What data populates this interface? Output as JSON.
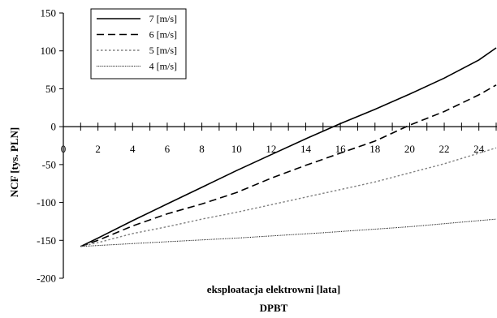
{
  "chart_data": {
    "type": "line",
    "title": "",
    "xlabel": "eksploatacja elektrowni [lata]",
    "xlabel2": "DPBT",
    "ylabel": "NCF [tys. PLN]",
    "xlim": [
      0,
      25
    ],
    "ylim": [
      -200,
      150
    ],
    "xticks": [
      0,
      2,
      4,
      6,
      8,
      10,
      12,
      14,
      16,
      18,
      20,
      22,
      24
    ],
    "yticks": [
      -200,
      -150,
      -100,
      -50,
      0,
      50,
      100,
      150
    ],
    "grid": false,
    "legend_position": "top-left",
    "series": [
      {
        "name": "7 [m/s]",
        "style": "solid",
        "color": "#000000",
        "points": [
          [
            1,
            -158
          ],
          [
            2,
            -147
          ],
          [
            4,
            -124
          ],
          [
            6,
            -102
          ],
          [
            8,
            -80
          ],
          [
            10,
            -58
          ],
          [
            12,
            -37
          ],
          [
            14,
            -16
          ],
          [
            16,
            4
          ],
          [
            18,
            23
          ],
          [
            20,
            43
          ],
          [
            22,
            64
          ],
          [
            24,
            88
          ],
          [
            25,
            104
          ]
        ]
      },
      {
        "name": "6 [m/s]",
        "style": "dashed",
        "color": "#000000",
        "points": [
          [
            1,
            -158
          ],
          [
            2,
            -150
          ],
          [
            4,
            -131
          ],
          [
            6,
            -115
          ],
          [
            8,
            -102
          ],
          [
            10,
            -87
          ],
          [
            12,
            -68
          ],
          [
            14,
            -51
          ],
          [
            16,
            -35
          ],
          [
            18,
            -19
          ],
          [
            20,
            2
          ],
          [
            22,
            20
          ],
          [
            24,
            42
          ],
          [
            25,
            55
          ]
        ]
      },
      {
        "name": "5 [m/s]",
        "style": "dotted",
        "color": "#808080",
        "points": [
          [
            1,
            -158
          ],
          [
            2,
            -153
          ],
          [
            4,
            -141
          ],
          [
            6,
            -132
          ],
          [
            8,
            -122
          ],
          [
            10,
            -113
          ],
          [
            12,
            -103
          ],
          [
            14,
            -93
          ],
          [
            16,
            -83
          ],
          [
            18,
            -73
          ],
          [
            20,
            -61
          ],
          [
            22,
            -49
          ],
          [
            24,
            -35
          ],
          [
            25,
            -28
          ]
        ]
      },
      {
        "name": "4 [m/s]",
        "style": "fine-dotted",
        "color": "#000000",
        "points": [
          [
            1,
            -158
          ],
          [
            5,
            -153
          ],
          [
            10,
            -147
          ],
          [
            15,
            -140
          ],
          [
            20,
            -132
          ],
          [
            25,
            -122
          ]
        ]
      }
    ]
  }
}
